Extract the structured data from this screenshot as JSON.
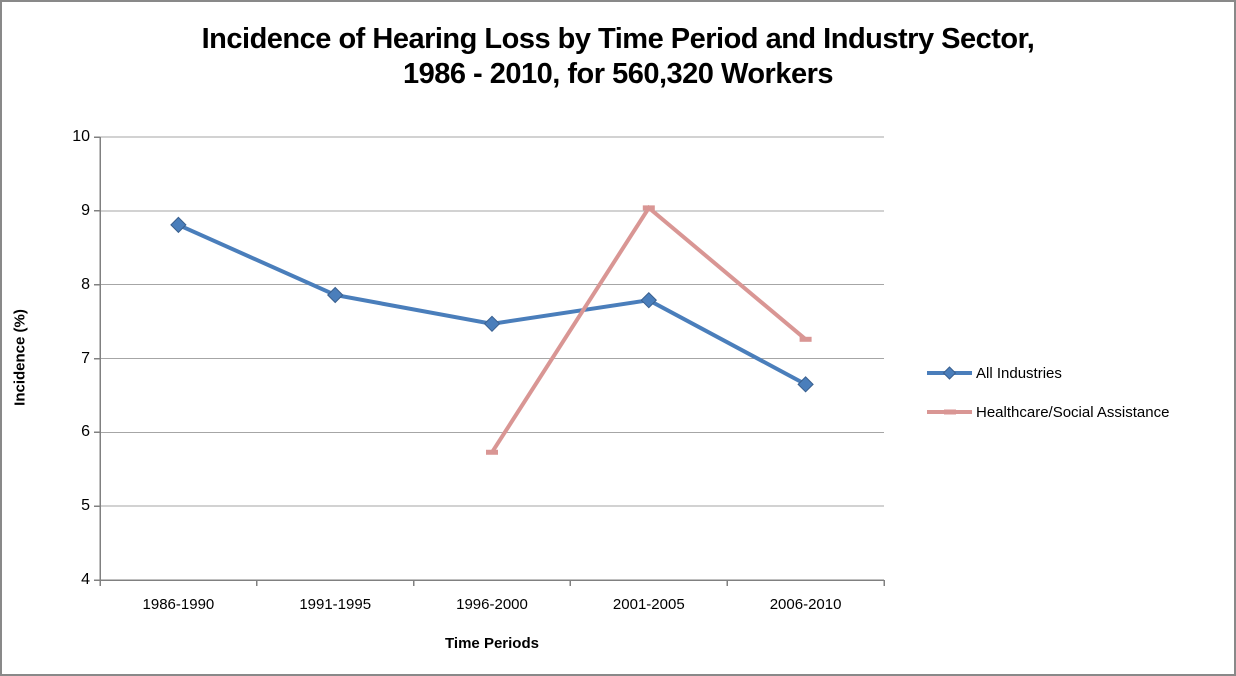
{
  "window": {
    "background": "#FFFFFF",
    "border_color": "#898989"
  },
  "chart_data": {
    "type": "line",
    "title": "Incidence of Hearing Loss by Time Period and Industry Sector, 1986 - 2010, for 560,320 Workers",
    "title_lines": [
      "Incidence of Hearing Loss by Time Period and Industry Sector,",
      "1986 - 2010, for 560,320 Workers"
    ],
    "xlabel": "Time Periods",
    "ylabel": "Incidence (%)",
    "categories": [
      "1986-1990",
      "1991-1995",
      "1996-2000",
      "2001-2005",
      "2006-2010"
    ],
    "y_ticks": [
      4,
      5,
      6,
      7,
      8,
      9,
      10
    ],
    "ylim": [
      4,
      10
    ],
    "grid": true,
    "legend_position": "right",
    "series": [
      {
        "name": "All Industries",
        "color": "#4A7EBB",
        "marker": "diamond",
        "marker_edge": "#395F8E",
        "values": [
          8.81,
          7.86,
          7.47,
          7.79,
          6.65
        ]
      },
      {
        "name": "Healthcare/Social Assistance",
        "color": "#D99694",
        "marker": "dash",
        "marker_edge": "#C88684",
        "values": [
          null,
          null,
          5.73,
          9.04,
          7.26
        ]
      }
    ],
    "colors": {
      "gridline": "#A6A6A6",
      "axis": "#808080",
      "text": "#000000"
    }
  }
}
